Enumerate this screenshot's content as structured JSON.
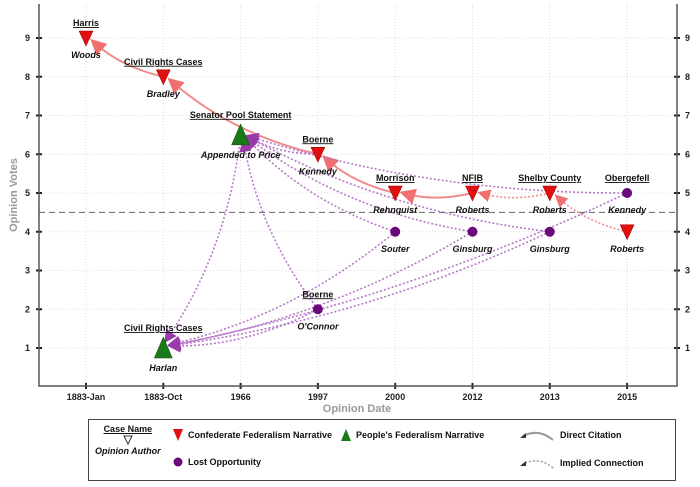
{
  "chart_data": {
    "type": "scatter",
    "xlabel": "Opinion Date",
    "ylabel": "Opinion Votes",
    "categories": [
      "1883-Jan",
      "1883-Oct",
      "1966",
      "1997",
      "2000",
      "2012",
      "2013",
      "2015"
    ],
    "yticks": [
      1,
      2,
      3,
      4,
      5,
      6,
      7,
      8,
      9
    ],
    "ylim": [
      0,
      9.9
    ],
    "threshold": 4.5,
    "grid": true,
    "points": [
      {
        "id": "woods",
        "x": "1883-Jan",
        "y": 9,
        "type": "confederate",
        "case": "Harris",
        "author": "Woods"
      },
      {
        "id": "bradley",
        "x": "1883-Oct",
        "y": 8,
        "type": "confederate",
        "case": "Civil Rights Cases",
        "author": "Bradley"
      },
      {
        "id": "harlan",
        "x": "1883-Oct",
        "y": 1,
        "type": "people",
        "case": "Civil Rights Cases",
        "author": "Harlan"
      },
      {
        "id": "price",
        "x": "1966",
        "y": 6.5,
        "type": "people",
        "case": "Senator Pool Statement",
        "author": "Appended to Price"
      },
      {
        "id": "kennedy97",
        "x": "1997",
        "y": 6,
        "type": "confederate",
        "case": "Boerne",
        "author": "Kennedy"
      },
      {
        "id": "oconnor",
        "x": "1997",
        "y": 2,
        "type": "lost",
        "case": "Boerne",
        "author": "O'Connor"
      },
      {
        "id": "rehnquist",
        "x": "2000",
        "y": 5,
        "type": "confederate",
        "case": "Morrison",
        "author": "Rehnquist"
      },
      {
        "id": "souter",
        "x": "2000",
        "y": 4,
        "type": "lost",
        "case": "",
        "author": "Souter"
      },
      {
        "id": "roberts12",
        "x": "2012",
        "y": 5,
        "type": "confederate",
        "case": "NFIB",
        "author": "Roberts"
      },
      {
        "id": "ginsburg12",
        "x": "2012",
        "y": 4,
        "type": "lost",
        "case": "",
        "author": "Ginsburg"
      },
      {
        "id": "roberts13",
        "x": "2013",
        "y": 5,
        "type": "confederate",
        "case": "Shelby County",
        "author": "Roberts"
      },
      {
        "id": "ginsburg13",
        "x": "2013",
        "y": 4,
        "type": "lost",
        "case": "",
        "author": "Ginsburg"
      },
      {
        "id": "kennedy15",
        "x": "2015",
        "y": 5,
        "type": "lost",
        "case": "Obergefell",
        "author": "Kennedy"
      },
      {
        "id": "roberts15",
        "x": "2015",
        "y": 4,
        "type": "confederate",
        "case": "",
        "author": "Roberts"
      }
    ],
    "edges": [
      {
        "from": "bradley",
        "to": "woods",
        "kind": "direct"
      },
      {
        "from": "kennedy97",
        "to": "bradley",
        "kind": "direct"
      },
      {
        "from": "rehnquist",
        "to": "kennedy97",
        "kind": "direct"
      },
      {
        "from": "roberts12",
        "to": "rehnquist",
        "kind": "direct"
      },
      {
        "from": "roberts13",
        "to": "roberts12",
        "kind": "implied-red"
      },
      {
        "from": "roberts15",
        "to": "roberts13",
        "kind": "implied-red"
      },
      {
        "from": "kennedy15",
        "to": "price",
        "kind": "implied"
      },
      {
        "from": "kennedy97",
        "to": "price",
        "kind": "implied"
      },
      {
        "from": "souter",
        "to": "price",
        "kind": "implied"
      },
      {
        "from": "ginsburg12",
        "to": "price",
        "kind": "implied"
      },
      {
        "from": "ginsburg13",
        "to": "price",
        "kind": "implied"
      },
      {
        "from": "oconnor",
        "to": "price",
        "kind": "implied"
      },
      {
        "from": "oconnor",
        "to": "harlan",
        "kind": "implied"
      },
      {
        "from": "souter",
        "to": "harlan",
        "kind": "implied"
      },
      {
        "from": "ginsburg12",
        "to": "harlan",
        "kind": "implied"
      },
      {
        "from": "ginsburg13",
        "to": "harlan",
        "kind": "implied"
      },
      {
        "from": "kennedy15",
        "to": "harlan",
        "kind": "implied"
      },
      {
        "from": "price",
        "to": "harlan",
        "kind": "implied"
      }
    ],
    "colors": {
      "confederate": "#e01010",
      "people": "#1a7a1a",
      "lost": "#6a0a7a",
      "direct": "#f08c8c",
      "implied": "#b878c8"
    }
  },
  "legend": {
    "case_name": "Case Name",
    "opinion_author": "Opinion Author",
    "confederate": "Confederate Federalism Narrative",
    "people": "People's Federalism Narrative",
    "lost": "Lost Opportunity",
    "direct": "Direct Citation",
    "implied": "Implied Connection"
  }
}
